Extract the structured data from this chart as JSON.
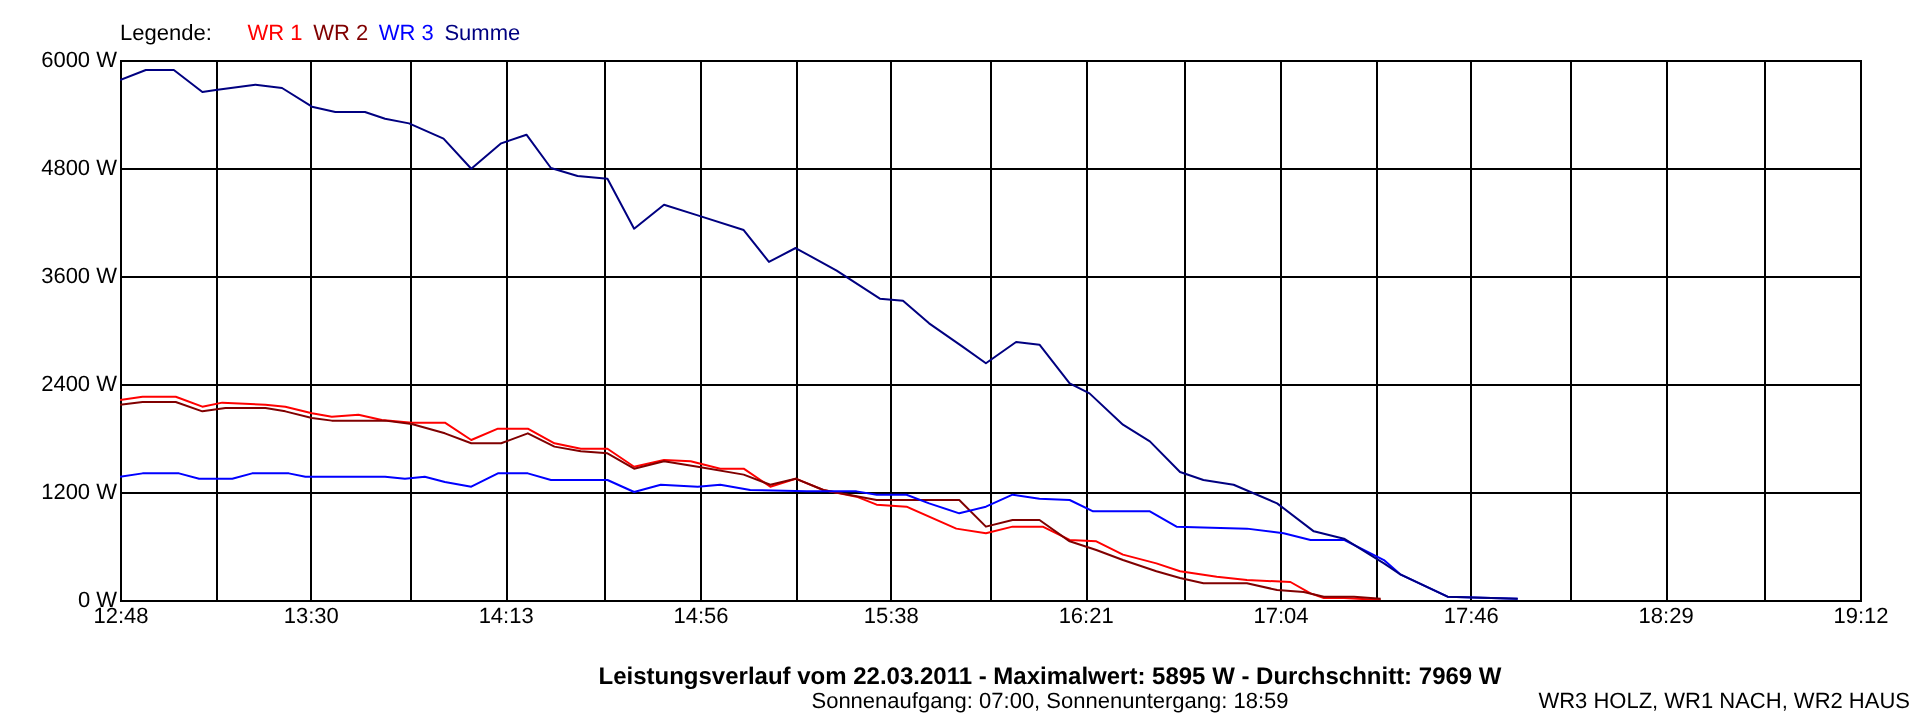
{
  "chart_data": {
    "type": "line",
    "title": "Leistungsverlauf vom 22.03.2011 - Maximalwert: 5895 W - Durchschnitt: 7969 W",
    "subtitle": "Sonnenaufgang: 07:00, Sonnenuntergang: 18:59",
    "legend_title": "Legende:",
    "annotations": [
      "WR3 HOLZ, WR1 NACH, WR2 HAUS"
    ],
    "xlim": [
      12.8,
      19.2
    ],
    "xticks": [
      {
        "value": 12.8,
        "label": "12:48"
      },
      {
        "value": 13.1556,
        "label": null
      },
      {
        "value": 13.5,
        "label": "13:30"
      },
      {
        "value": 13.8667,
        "label": null
      },
      {
        "value": 14.2167,
        "label": "14:13"
      },
      {
        "value": 14.5778,
        "label": null
      },
      {
        "value": 14.9333,
        "label": "14:56"
      },
      {
        "value": 15.2889,
        "label": null
      },
      {
        "value": 15.6333,
        "label": "15:38"
      },
      {
        "value": 16.0,
        "label": null
      },
      {
        "value": 16.35,
        "label": "16:21"
      },
      {
        "value": 16.7111,
        "label": null
      },
      {
        "value": 17.0667,
        "label": "17:04"
      },
      {
        "value": 17.4222,
        "label": null
      },
      {
        "value": 17.7667,
        "label": "17:46"
      },
      {
        "value": 18.1333,
        "label": null
      },
      {
        "value": 18.4833,
        "label": "18:29"
      },
      {
        "value": 18.8444,
        "label": null
      },
      {
        "value": 19.2,
        "label": "19:12"
      }
    ],
    "ylim": [
      0,
      6000
    ],
    "yticks": [
      {
        "value": 0,
        "label": "0 W"
      },
      {
        "value": 1200,
        "label": "1200 W"
      },
      {
        "value": 2400,
        "label": "2400 W"
      },
      {
        "value": 3600,
        "label": "3600 W"
      },
      {
        "value": 4800,
        "label": "4800 W"
      },
      {
        "value": 6000,
        "label": "6000 W"
      }
    ],
    "grid": true,
    "legend": "top left",
    "marker": "none",
    "line_style": "solid",
    "series": [
      {
        "name": "WR 1",
        "color": "#ff0000",
        "x": [
          12.8,
          12.883,
          13.005,
          13.103,
          13.176,
          13.335,
          13.408,
          13.506,
          13.579,
          13.677,
          13.763,
          13.873,
          13.995,
          14.092,
          14.19,
          14.3,
          14.398,
          14.495,
          14.593,
          14.691,
          14.801,
          14.899,
          15.008,
          15.094,
          15.192,
          15.285,
          15.387,
          15.509,
          15.583,
          15.693,
          15.876,
          15.985,
          16.083,
          16.194,
          16.293,
          16.391,
          16.489,
          16.612,
          16.699,
          16.834,
          16.945,
          17.105,
          17.179,
          17.228,
          17.302,
          17.437
        ],
        "values": [
          2222,
          2259,
          2259,
          2148,
          2193,
          2170,
          2148,
          2074,
          2037,
          2059,
          2000,
          1970,
          1970,
          1778,
          1904,
          1904,
          1741,
          1681,
          1681,
          1481,
          1556,
          1541,
          1459,
          1459,
          1259,
          1348,
          1222,
          1148,
          1059,
          1037,
          793,
          741,
          815,
          815,
          667,
          652,
          504,
          407,
          319,
          259,
          222,
          200,
          74,
          22,
          22,
          0
        ]
      },
      {
        "name": "WR 2",
        "color": "#800000",
        "x": [
          12.8,
          12.883,
          13.005,
          13.103,
          13.188,
          13.335,
          13.408,
          13.506,
          13.579,
          13.775,
          13.873,
          13.995,
          14.092,
          14.202,
          14.3,
          14.398,
          14.495,
          14.593,
          14.691,
          14.801,
          14.925,
          15.094,
          15.192,
          15.285,
          15.387,
          15.583,
          15.887,
          15.985,
          16.083,
          16.182,
          16.293,
          16.391,
          16.489,
          16.612,
          16.699,
          16.785,
          16.945,
          17.056,
          17.154,
          17.228,
          17.339,
          17.437
        ],
        "values": [
          2170,
          2200,
          2200,
          2096,
          2133,
          2133,
          2096,
          2022,
          1993,
          1993,
          1956,
          1852,
          1741,
          1741,
          1852,
          1704,
          1652,
          1630,
          1459,
          1541,
          1481,
          1393,
          1281,
          1348,
          1222,
          1111,
          1111,
          815,
          889,
          889,
          652,
          556,
          444,
          319,
          244,
          185,
          185,
          111,
          89,
          37,
          37,
          15
        ]
      },
      {
        "name": "WR 3",
        "color": "#0000ff",
        "x": [
          12.8,
          12.883,
          13.017,
          13.091,
          13.213,
          13.286,
          13.421,
          13.482,
          13.775,
          13.848,
          13.921,
          13.995,
          14.092,
          14.19,
          14.3,
          14.385,
          14.593,
          14.691,
          14.789,
          14.925,
          15.008,
          15.118,
          15.326,
          15.509,
          15.583,
          15.693,
          15.776,
          15.887,
          15.985,
          16.083,
          16.182,
          16.293,
          16.379,
          16.588,
          16.686,
          16.945,
          17.08,
          17.179,
          17.302,
          17.449,
          17.511,
          17.683,
          17.941
        ],
        "values": [
          1370,
          1407,
          1407,
          1348,
          1348,
          1407,
          1407,
          1370,
          1370,
          1348,
          1370,
          1311,
          1259,
          1407,
          1407,
          1333,
          1333,
          1200,
          1281,
          1259,
          1281,
          1222,
          1207,
          1207,
          1170,
          1170,
          1074,
          963,
          1037,
          1170,
          1126,
          1111,
          985,
          985,
          815,
          793,
          741,
          667,
          667,
          444,
          281,
          37,
          15
        ]
      },
      {
        "name": "Summe",
        "color": "#000080",
        "x": [
          12.8,
          12.895,
          12.998,
          13.103,
          13.152,
          13.298,
          13.396,
          13.506,
          13.592,
          13.701,
          13.775,
          13.863,
          13.99,
          14.092,
          14.202,
          14.295,
          14.385,
          14.483,
          14.593,
          14.691,
          14.801,
          14.925,
          15.094,
          15.187,
          15.285,
          15.436,
          15.595,
          15.68,
          15.776,
          15.899,
          15.985,
          16.096,
          16.182,
          16.293,
          16.366,
          16.489,
          16.588,
          16.699,
          16.785,
          16.896,
          17.056,
          17.191,
          17.302,
          17.449,
          17.511,
          17.683,
          17.941
        ],
        "values": [
          5778,
          5889,
          5889,
          5644,
          5667,
          5726,
          5689,
          5481,
          5422,
          5422,
          5348,
          5296,
          5126,
          4792,
          5074,
          5170,
          4800,
          4711,
          4681,
          4126,
          4392,
          4274,
          4111,
          3756,
          3911,
          3659,
          3348,
          3326,
          3074,
          2815,
          2630,
          2867,
          2837,
          2407,
          2296,
          1948,
          1763,
          1422,
          1333,
          1281,
          1074,
          763,
          681,
          407,
          281,
          37,
          15
        ]
      }
    ]
  }
}
